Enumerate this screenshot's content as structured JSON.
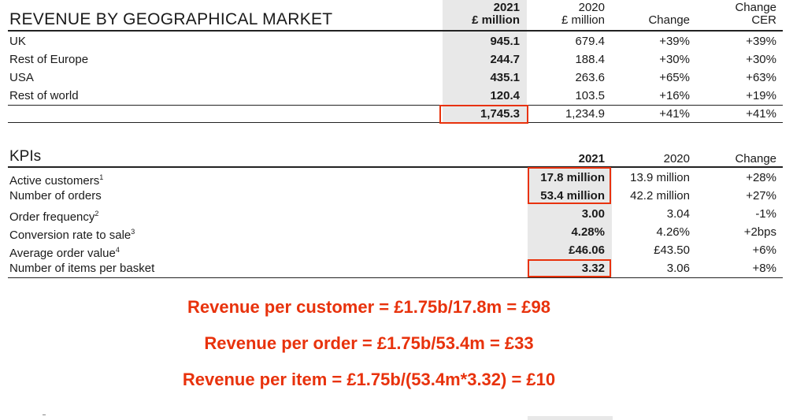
{
  "revenue_table": {
    "title": "REVENUE BY GEOGRAPHICAL MARKET",
    "headers": {
      "y2021_line1": "2021",
      "y2021_line2": "£ million",
      "y2020_line1": "2020",
      "y2020_line2": "£ million",
      "change": "Change",
      "change_cer_line1": "Change",
      "change_cer_line2": "CER"
    },
    "rows": [
      {
        "label": "UK",
        "v2021": "945.1",
        "v2020": "679.4",
        "change": "+39%",
        "change_cer": "+39%"
      },
      {
        "label": "Rest of Europe",
        "v2021": "244.7",
        "v2020": "188.4",
        "change": "+30%",
        "change_cer": "+30%"
      },
      {
        "label": "USA",
        "v2021": "435.1",
        "v2020": "263.6",
        "change": "+65%",
        "change_cer": "+63%"
      },
      {
        "label": "Rest of world",
        "v2021": "120.4",
        "v2020": "103.5",
        "change": "+16%",
        "change_cer": "+19%"
      }
    ],
    "total": {
      "v2021": "1,745.3",
      "v2020": "1,234.9",
      "change": "+41%",
      "change_cer": "+41%"
    }
  },
  "kpi_table": {
    "title": "KPIs",
    "headers": {
      "y2021": "2021",
      "y2020": "2020",
      "change": "Change"
    },
    "rows": [
      {
        "label": "Active customers",
        "sup": "1",
        "v2021": "17.8 million",
        "v2020": "13.9 million",
        "change": "+28%"
      },
      {
        "label": "Number of orders",
        "sup": "",
        "v2021": "53.4 million",
        "v2020": "42.2 million",
        "change": "+27%"
      },
      {
        "label": "Order frequency",
        "sup": "2",
        "v2021": "3.00",
        "v2020": "3.04",
        "change": "-1%"
      },
      {
        "label": "Conversion rate to sale",
        "sup": "3",
        "v2021": "4.28%",
        "v2020": "4.26%",
        "change": "+2bps"
      },
      {
        "label": "Average order value",
        "sup": "4",
        "v2021": "£46.06",
        "v2020": "£43.50",
        "change": "+6%"
      },
      {
        "label": "Number of items per basket",
        "sup": "",
        "v2021": "3.32",
        "v2020": "3.06",
        "change": "+8%"
      }
    ]
  },
  "calculations": [
    "Revenue per customer = £1.75b/17.8m = £98",
    "Revenue per order = £1.75b/53.4m = £33",
    "Revenue per item = £1.75b/(53.4m*3.32) = £10"
  ],
  "colors": {
    "highlight": "#e8320c",
    "shade": "#e8e8e8"
  }
}
